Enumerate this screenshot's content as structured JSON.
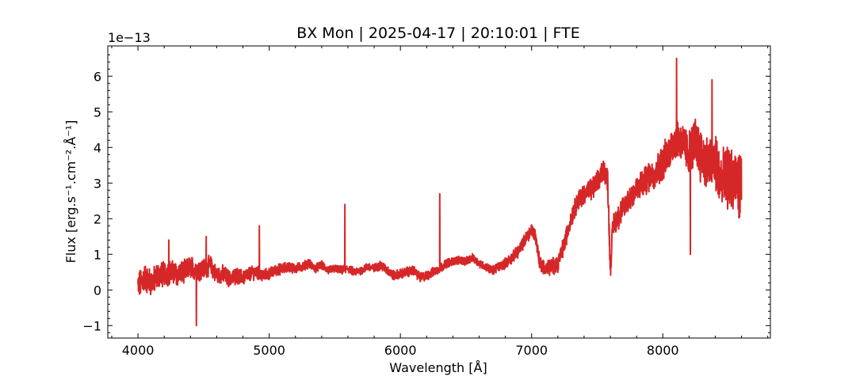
{
  "chart_data": {
    "type": "line",
    "title": "BX Mon | 2025-04-17 | 20:10:01 | FTE",
    "xlabel": "Wavelength [Å]",
    "ylabel": "Flux [erg.s⁻¹.cm⁻².Å⁻¹]",
    "y_multiplier": "1e−13",
    "xlim": [
      3770,
      8820
    ],
    "ylim": [
      -1.35,
      6.85
    ],
    "x_ticks": [
      4000,
      5000,
      6000,
      7000,
      8000
    ],
    "x_tick_labels": [
      "4000",
      "5000",
      "6000",
      "7000",
      "8000"
    ],
    "y_ticks": [
      -1,
      0,
      1,
      2,
      3,
      4,
      5,
      6
    ],
    "y_tick_labels": [
      "−1",
      "0",
      "1",
      "2",
      "3",
      "4",
      "5",
      "6"
    ],
    "grid": false,
    "legend": "none",
    "series": [
      {
        "color": "#d62728",
        "x": [
          4000,
          4050,
          4100,
          4150,
          4200,
          4250,
          4300,
          4350,
          4400,
          4450,
          4500,
          4550,
          4600,
          4650,
          4700,
          4750,
          4800,
          4850,
          4900,
          4950,
          5000,
          5050,
          5100,
          5150,
          5200,
          5250,
          5300,
          5350,
          5400,
          5450,
          5500,
          5550,
          5600,
          5650,
          5700,
          5750,
          5800,
          5850,
          5900,
          5950,
          6000,
          6050,
          6100,
          6150,
          6200,
          6250,
          6300,
          6350,
          6400,
          6450,
          6500,
          6550,
          6600,
          6650,
          6700,
          6750,
          6800,
          6850,
          6900,
          6950,
          7000,
          7030,
          7060,
          7100,
          7150,
          7200,
          7250,
          7300,
          7350,
          7400,
          7450,
          7500,
          7550,
          7580,
          7600,
          7620,
          7650,
          7700,
          7750,
          7800,
          7850,
          7900,
          7950,
          8000,
          8050,
          8100,
          8150,
          8200,
          8250,
          8300,
          8350,
          8400,
          8450,
          8500,
          8550,
          8600
        ],
        "y": [
          0.1,
          0.35,
          0.2,
          0.4,
          0.45,
          0.5,
          0.45,
          0.5,
          0.65,
          0.55,
          0.6,
          0.7,
          0.4,
          0.45,
          0.3,
          0.4,
          0.35,
          0.45,
          0.5,
          0.4,
          0.45,
          0.55,
          0.6,
          0.65,
          0.6,
          0.65,
          0.75,
          0.6,
          0.7,
          0.55,
          0.6,
          0.55,
          0.6,
          0.5,
          0.55,
          0.65,
          0.6,
          0.7,
          0.55,
          0.4,
          0.45,
          0.5,
          0.55,
          0.35,
          0.4,
          0.5,
          0.6,
          0.75,
          0.8,
          0.85,
          0.8,
          0.9,
          0.75,
          0.65,
          0.55,
          0.65,
          0.75,
          0.9,
          1.1,
          1.4,
          1.7,
          1.5,
          0.8,
          0.6,
          0.65,
          0.75,
          1.3,
          2.0,
          2.5,
          2.7,
          2.8,
          3.0,
          3.4,
          3.1,
          0.6,
          1.8,
          2.0,
          2.3,
          2.6,
          2.8,
          3.0,
          3.2,
          3.3,
          3.6,
          3.9,
          4.3,
          4.1,
          3.8,
          4.2,
          3.7,
          3.5,
          3.6,
          3.0,
          3.2,
          3.0,
          2.9
        ],
        "spikes": [
          {
            "x": 4445,
            "y": -1.0
          },
          {
            "x": 4235,
            "y": 1.4
          },
          {
            "x": 4520,
            "y": 1.5
          },
          {
            "x": 4925,
            "y": 1.8
          },
          {
            "x": 5577,
            "y": 2.4
          },
          {
            "x": 6300,
            "y": 2.7
          },
          {
            "x": 8105,
            "y": 6.5
          },
          {
            "x": 8210,
            "y": 1.0
          },
          {
            "x": 8375,
            "y": 5.9
          }
        ],
        "noise_amplitude": [
          0.35,
          0.3,
          0.25,
          0.2,
          0.15,
          0.12,
          0.1,
          0.1,
          0.12,
          0.12,
          0.1,
          0.1,
          0.15,
          0.2,
          0.25,
          0.3,
          0.35,
          0.5,
          0.7,
          0.8
        ]
      }
    ]
  }
}
